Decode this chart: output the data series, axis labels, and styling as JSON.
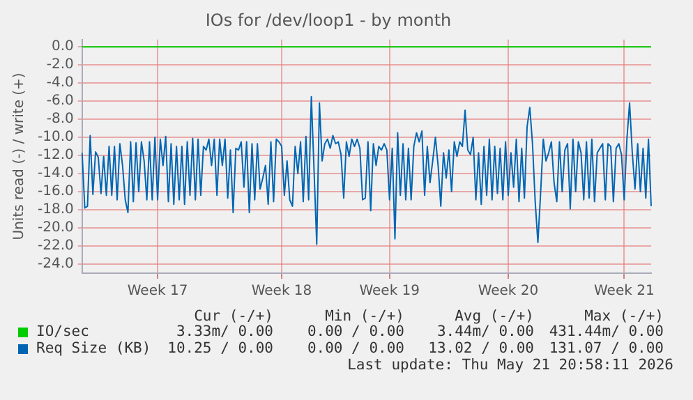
{
  "chart_data": {
    "type": "line",
    "title": "IOs for /dev/loop1 - by month",
    "ylabel": "Units read (-) / write (+)",
    "categories": [
      null,
      null,
      null,
      null,
      null,
      null,
      null,
      null,
      null,
      null,
      null,
      null,
      null,
      null,
      null,
      null,
      null,
      null,
      null,
      null,
      null,
      null,
      null,
      null,
      null,
      null,
      null,
      null,
      "Week 17",
      null,
      null,
      null,
      null,
      null,
      null,
      null,
      null,
      null,
      null,
      null,
      null,
      null,
      null,
      null,
      null,
      null,
      null,
      null,
      null,
      null,
      null,
      null,
      null,
      null,
      null,
      null,
      null,
      null,
      null,
      null,
      null,
      null,
      null,
      null,
      null,
      null,
      null,
      null,
      null,
      null,
      null,
      null,
      null,
      null,
      "Week 18",
      null,
      null,
      null,
      null,
      null,
      null,
      null,
      null,
      null,
      null,
      null,
      null,
      null,
      null,
      null,
      null,
      null,
      null,
      null,
      null,
      null,
      null,
      null,
      null,
      null,
      null,
      null,
      null,
      null,
      null,
      null,
      null,
      null,
      null,
      null,
      null,
      null,
      null,
      null,
      "Week 19",
      null,
      null,
      null,
      null,
      null,
      null,
      null,
      null,
      null,
      null,
      null,
      null,
      null,
      null,
      null,
      null,
      null,
      null,
      null,
      null,
      null,
      null,
      null,
      null,
      null,
      null,
      null,
      null,
      null,
      null,
      null,
      null,
      null,
      null,
      null,
      null,
      null,
      null,
      null,
      null,
      null,
      null,
      null,
      "Week 20",
      null,
      null,
      null,
      null,
      null,
      null,
      null,
      null,
      null,
      null,
      null,
      null,
      null,
      null,
      null,
      null,
      null,
      null,
      null,
      null,
      null,
      null,
      null,
      null,
      null,
      null,
      null,
      null,
      null,
      null,
      null,
      null,
      null,
      null,
      null,
      null,
      null,
      null,
      null,
      null,
      null,
      null,
      "Week 21",
      null,
      null,
      null,
      null,
      null,
      null,
      null,
      null,
      null,
      null
    ],
    "ylim": [
      -25,
      0.8
    ],
    "yticks": [
      {
        "value": 0,
        "label": "0.0"
      },
      {
        "value": -2,
        "label": "-2.0"
      },
      {
        "value": -4,
        "label": "-4.0"
      },
      {
        "value": -6,
        "label": "-6.0"
      },
      {
        "value": -8,
        "label": "-8.0"
      },
      {
        "value": -10,
        "label": "-10.0"
      },
      {
        "value": -12,
        "label": "-12.0"
      },
      {
        "value": -14,
        "label": "-14.0"
      },
      {
        "value": -16,
        "label": "-16.0"
      },
      {
        "value": -18,
        "label": "-18.0"
      },
      {
        "value": -20,
        "label": "-20.0"
      },
      {
        "value": -22,
        "label": "-22.0"
      },
      {
        "value": -24,
        "label": "-24.0"
      }
    ],
    "grid": true,
    "legend": "bottom",
    "marker": "none",
    "line_style": "solid",
    "series": [
      {
        "name": "IO/sec",
        "color": "#00cc00",
        "values": [
          0,
          0,
          0,
          0,
          0,
          0,
          0,
          0,
          0,
          0,
          0,
          0,
          0,
          0,
          0,
          0,
          0,
          0,
          0,
          0,
          0,
          0,
          0,
          0,
          0,
          0,
          0,
          0,
          0,
          0,
          0,
          0,
          0,
          0,
          0,
          0,
          0,
          0,
          0,
          0,
          0,
          0,
          0,
          0,
          0,
          0,
          0,
          0,
          0,
          0,
          0,
          0,
          0,
          0,
          0,
          0,
          0,
          0,
          0,
          0,
          0,
          0,
          0,
          0,
          0,
          0,
          0,
          0,
          0,
          0,
          0,
          0,
          0,
          0,
          0,
          0,
          0,
          0,
          0,
          0,
          0,
          0,
          0,
          0,
          0,
          0,
          0,
          0,
          0,
          0,
          0,
          0,
          0,
          0,
          0,
          0,
          0,
          0,
          0,
          0,
          0,
          0,
          0,
          0,
          0,
          0,
          0,
          0,
          0,
          0,
          0,
          0,
          0,
          0,
          0,
          0,
          0,
          0,
          0,
          0,
          0,
          0,
          0,
          0,
          0,
          0,
          0,
          0,
          0,
          0,
          0,
          0,
          0,
          0,
          0,
          0,
          0,
          0,
          0,
          0,
          0,
          0,
          0,
          0,
          0,
          0,
          0,
          0,
          0,
          0,
          0,
          0,
          0,
          0,
          0,
          0,
          0,
          0,
          0,
          0,
          0,
          0,
          0,
          0,
          0,
          0,
          0,
          0,
          0,
          0,
          0,
          0,
          0,
          0,
          0,
          0,
          0,
          0,
          0,
          0,
          0,
          0,
          0,
          0,
          0,
          0,
          0,
          0,
          0,
          0,
          0,
          0,
          0,
          0,
          0,
          0,
          0,
          0,
          0,
          0,
          0,
          0,
          0,
          0,
          0,
          0,
          0,
          0,
          0,
          0,
          0,
          0
        ]
      },
      {
        "name": "Req Size (KB)",
        "color": "#0066b3",
        "values": [
          -11.7,
          -17.8,
          -17.6,
          -9.8,
          -16.3,
          -11.6,
          -12.2,
          -16.2,
          -12.1,
          -16.4,
          -11.0,
          -16.4,
          -11.0,
          -16.9,
          -10.7,
          -13.1,
          -16.9,
          -18.3,
          -10.5,
          -17.1,
          -10.6,
          -16.0,
          -10.5,
          -12.6,
          -16.9,
          -10.5,
          -16.9,
          -10.0,
          -16.9,
          -10.2,
          -13.1,
          -9.9,
          -17.1,
          -10.7,
          -17.4,
          -11.0,
          -16.9,
          -11.0,
          -17.4,
          -10.5,
          -16.4,
          -10.1,
          -16.9,
          -10.2,
          -16.4,
          -11.0,
          -11.4,
          -10.2,
          -13.1,
          -10.2,
          -16.4,
          -10.2,
          -13.1,
          -10.2,
          -16.7,
          -11.4,
          -18.3,
          -11.2,
          -11.4,
          -10.5,
          -15.5,
          -10.5,
          -18.3,
          -10.7,
          -16.9,
          -10.7,
          -15.7,
          -14.5,
          -13.1,
          -17.4,
          -10.5,
          -17.1,
          -10.2,
          -10.5,
          -11.0,
          -16.4,
          -12.6,
          -16.9,
          -17.6,
          -11.0,
          -14.0,
          -10.5,
          -17.1,
          -9.9,
          -16.9,
          -5.5,
          -13.6,
          -21.8,
          -6.2,
          -12.6,
          -10.7,
          -10.2,
          -11.2,
          -9.8,
          -10.7,
          -10.5,
          -11.9,
          -16.7,
          -10.5,
          -12.1,
          -10.2,
          -11.0,
          -10.2,
          -11.2,
          -16.9,
          -16.7,
          -10.5,
          -18.1,
          -10.7,
          -13.1,
          -11.0,
          -11.4,
          -10.7,
          -11.4,
          -16.9,
          -11.2,
          -21.2,
          -9.5,
          -16.4,
          -10.7,
          -16.9,
          -11.2,
          -16.9,
          -11.0,
          -9.5,
          -10.5,
          -9.3,
          -16.4,
          -11.0,
          -15.0,
          -12.6,
          -10.0,
          -13.1,
          -17.6,
          -11.7,
          -14.5,
          -11.4,
          -16.0,
          -10.5,
          -12.1,
          -10.5,
          -11.0,
          -7.0,
          -11.4,
          -11.9,
          -10.0,
          -16.9,
          -11.7,
          -17.4,
          -11.0,
          -16.4,
          -10.2,
          -16.9,
          -11.0,
          -16.2,
          -11.2,
          -16.9,
          -10.5,
          -16.4,
          -11.7,
          -15.5,
          -10.2,
          -17.1,
          -11.2,
          -16.7,
          -8.8,
          -6.7,
          -10.7,
          -17.1,
          -21.6,
          -16.2,
          -10.2,
          -12.6,
          -11.7,
          -10.5,
          -15.0,
          -17.1,
          -10.5,
          -16.0,
          -11.4,
          -10.7,
          -17.9,
          -10.2,
          -16.0,
          -10.5,
          -11.7,
          -16.9,
          -10.5,
          -16.7,
          -10.2,
          -17.1,
          -11.7,
          -11.2,
          -10.7,
          -16.9,
          -10.7,
          -11.0,
          -17.1,
          -11.2,
          -10.7,
          -11.9,
          -16.9,
          -10.2,
          -6.2,
          -11.7,
          -15.7,
          -10.7,
          -16.0,
          -11.2,
          -16.7,
          -10.2,
          -17.6
        ]
      }
    ],
    "annotations": [
      "Cur (-/+)",
      "Min (-/+)",
      "Avg (-/+)",
      "Max (-/+)",
      "3.33m/ 0.00",
      "0.00 / 0.00",
      "3.44m/ 0.00",
      "431.44m/ 0.00",
      "10.25 / 0.00",
      "0.00 / 0.00",
      "13.02 / 0.00",
      "131.07 / 0.00",
      "Last update: Thu May 21 20:58:11 2026"
    ]
  }
}
